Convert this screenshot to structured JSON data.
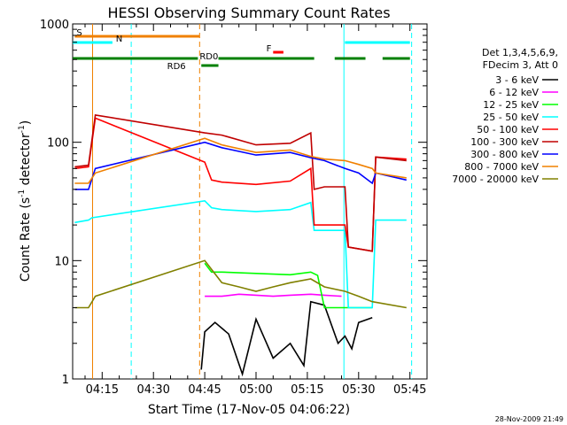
{
  "chart_data": {
    "type": "line",
    "title": "HESSI Observing Summary Count Rates",
    "xlabel": "Start Time (17-Nov-05 04:06:22)",
    "ylabel": "Count Rate (s",
    "ylabel_sup1": "-1",
    "ylabel_mid": " detector",
    "ylabel_sup2": "-1",
    "ylabel_end": ")",
    "y_scale": "log",
    "ylim": [
      1,
      1000
    ],
    "xlim_minutes": [
      246.37,
      350.0
    ],
    "x_ticks": [
      {
        "label": "04:15",
        "minute": 255
      },
      {
        "label": "04:30",
        "minute": 270
      },
      {
        "label": "04:45",
        "minute": 285
      },
      {
        "label": "05:00",
        "minute": 300
      },
      {
        "label": "05:15",
        "minute": 315
      },
      {
        "label": "05:30",
        "minute": 330
      },
      {
        "label": "05:45",
        "minute": 345
      }
    ],
    "y_ticks": [
      {
        "label": "1",
        "value": 1
      },
      {
        "label": "10",
        "value": 10
      },
      {
        "label": "100",
        "value": 100
      },
      {
        "label": "1000",
        "value": 1000
      }
    ],
    "timestamp": "28-Nov-2009 21:49",
    "legend": {
      "position": "right",
      "header": [
        "Det 1,3,4,5,6,9,",
        "FDecim 3, Att 0"
      ]
    },
    "series": [
      {
        "name": "3 - 6 keV",
        "color": "#000000",
        "values": [
          [
            284,
            1.2
          ],
          [
            285,
            2.5
          ],
          [
            288,
            3.0
          ],
          [
            292,
            2.4
          ],
          [
            296,
            1.1
          ],
          [
            300,
            3.2
          ],
          [
            305,
            1.5
          ],
          [
            310,
            2.0
          ],
          [
            314,
            1.3
          ],
          [
            316,
            4.5
          ],
          [
            320,
            4.2
          ],
          [
            324,
            2.0
          ],
          [
            326,
            2.3
          ],
          [
            328,
            1.8
          ],
          [
            330,
            3.0
          ],
          [
            334,
            3.3
          ]
        ]
      },
      {
        "name": "6 - 12 keV",
        "color": "#ff00ff",
        "values": [
          [
            285,
            5.0
          ],
          [
            290,
            5.0
          ],
          [
            295,
            5.2
          ],
          [
            300,
            5.1
          ],
          [
            305,
            5.0
          ],
          [
            310,
            5.1
          ],
          [
            316,
            5.2
          ],
          [
            320,
            5.1
          ],
          [
            325,
            5.0
          ]
        ]
      },
      {
        "name": "12 - 25 keV",
        "color": "#00ff00",
        "values": [
          [
            285,
            9.5
          ],
          [
            287,
            8.0
          ],
          [
            290,
            8.0
          ],
          [
            300,
            7.8
          ],
          [
            310,
            7.6
          ],
          [
            316,
            8.0
          ],
          [
            318,
            7.5
          ],
          [
            320,
            4.0
          ],
          [
            326,
            4.0
          ],
          [
            330,
            4.0
          ],
          [
            334,
            4.0
          ]
        ]
      },
      {
        "name": "25 - 50 keV",
        "color": "#00ffff",
        "values": [
          [
            247,
            21
          ],
          [
            251,
            22
          ],
          [
            252,
            23
          ],
          [
            285,
            32
          ],
          [
            287,
            28
          ],
          [
            290,
            27
          ],
          [
            300,
            26
          ],
          [
            310,
            27
          ],
          [
            316,
            31
          ],
          [
            317,
            18
          ],
          [
            320,
            18
          ],
          [
            326,
            18
          ],
          [
            327,
            4
          ],
          [
            334,
            4
          ],
          [
            335,
            22
          ],
          [
            344,
            22
          ]
        ]
      },
      {
        "name": "50 - 100 keV",
        "color": "#ff0000",
        "values": [
          [
            247,
            60
          ],
          [
            251,
            62
          ],
          [
            253,
            160
          ],
          [
            285,
            68
          ],
          [
            287,
            48
          ],
          [
            290,
            46
          ],
          [
            300,
            44
          ],
          [
            310,
            47
          ],
          [
            316,
            60
          ],
          [
            317,
            20
          ],
          [
            320,
            20
          ],
          [
            326,
            20
          ],
          [
            327,
            13
          ],
          [
            334,
            12
          ],
          [
            335,
            75
          ],
          [
            344,
            72
          ]
        ]
      },
      {
        "name": "100 - 300 keV",
        "color": "#c00000",
        "values": [
          [
            247,
            62
          ],
          [
            251,
            64
          ],
          [
            253,
            170
          ],
          [
            285,
            120
          ],
          [
            290,
            115
          ],
          [
            300,
            95
          ],
          [
            310,
            98
          ],
          [
            316,
            120
          ],
          [
            317,
            40
          ],
          [
            320,
            42
          ],
          [
            326,
            42
          ],
          [
            327,
            13
          ],
          [
            334,
            12
          ],
          [
            335,
            75
          ],
          [
            344,
            70
          ]
        ]
      },
      {
        "name": "300 - 800 keV",
        "color": "#0000ff",
        "values": [
          [
            247,
            40
          ],
          [
            251,
            40
          ],
          [
            253,
            60
          ],
          [
            285,
            100
          ],
          [
            290,
            90
          ],
          [
            300,
            78
          ],
          [
            310,
            82
          ],
          [
            316,
            74
          ],
          [
            320,
            70
          ],
          [
            326,
            60
          ],
          [
            330,
            55
          ],
          [
            334,
            45
          ],
          [
            335,
            55
          ],
          [
            344,
            48
          ]
        ]
      },
      {
        "name": "800 - 7000 keV",
        "color": "#f08000",
        "values": [
          [
            247,
            45
          ],
          [
            251,
            45
          ],
          [
            253,
            55
          ],
          [
            285,
            108
          ],
          [
            290,
            95
          ],
          [
            300,
            82
          ],
          [
            310,
            86
          ],
          [
            316,
            76
          ],
          [
            320,
            72
          ],
          [
            326,
            70
          ],
          [
            330,
            65
          ],
          [
            334,
            60
          ],
          [
            335,
            55
          ],
          [
            344,
            50
          ]
        ]
      },
      {
        "name": "7000 - 20000 keV",
        "color": "#808000",
        "values": [
          [
            247,
            4.0
          ],
          [
            251,
            4.0
          ],
          [
            253,
            5
          ],
          [
            285,
            10
          ],
          [
            290,
            6.5
          ],
          [
            295,
            6.0
          ],
          [
            300,
            5.5
          ],
          [
            305,
            6.0
          ],
          [
            310,
            6.5
          ],
          [
            316,
            7.0
          ],
          [
            320,
            6.0
          ],
          [
            326,
            5.5
          ],
          [
            330,
            5.0
          ],
          [
            334,
            4.5
          ],
          [
            344,
            4.0
          ]
        ]
      }
    ],
    "flags": [
      {
        "label": "S",
        "color": "#f08000",
        "bars": [
          [
            247,
            283.5
          ]
        ],
        "row": 1
      },
      {
        "label": "N",
        "color": "#00ffff",
        "bars": [
          [
            246.4,
            258
          ],
          [
            326,
            345
          ]
        ],
        "row": 2
      },
      {
        "label": "F",
        "color": "#ff0000",
        "bars": [
          [
            305,
            308
          ]
        ],
        "row": 3
      },
      {
        "label": "RD0",
        "color": "#008000",
        "bars": [
          [
            246.4,
            283
          ],
          [
            289,
            317
          ],
          [
            323,
            332
          ],
          [
            337,
            345
          ]
        ],
        "row": 4
      },
      {
        "label": "RD6",
        "color": "#008000",
        "bars": [
          [
            284,
            289
          ]
        ],
        "row": 5
      }
    ],
    "vlines": [
      {
        "minute": 252.2,
        "color": "#f08000",
        "style": "solid"
      },
      {
        "minute": 263.5,
        "color": "#00ffff",
        "style": "dashed"
      },
      {
        "minute": 283.5,
        "color": "#f08000",
        "style": "dashed"
      },
      {
        "minute": 325.7,
        "color": "#00ffff",
        "style": "solid"
      },
      {
        "minute": 345.5,
        "color": "#00ffff",
        "style": "dashed"
      }
    ]
  }
}
